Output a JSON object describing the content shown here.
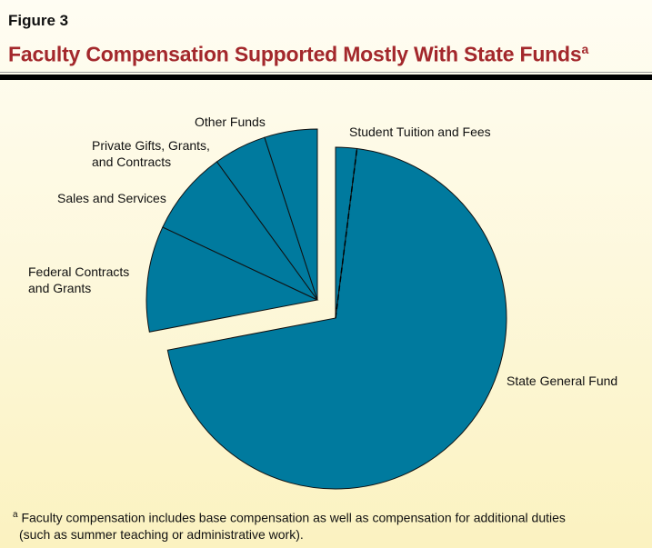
{
  "header": {
    "figure_label": "Figure 3",
    "title": "Faculty Compensation Supported Mostly With State Funds",
    "title_note_marker": "a"
  },
  "chart_data": {
    "type": "pie",
    "title": "Faculty Compensation Supported Mostly With State Funds",
    "units": "percent (estimated)",
    "slices": [
      {
        "label": "Student Tuition and Fees",
        "value": 2,
        "group": "state"
      },
      {
        "label": "State General Fund",
        "value": 70,
        "group": "state"
      },
      {
        "label": "Federal Contracts and Grants",
        "value": 10,
        "group": "other"
      },
      {
        "label": "Sales and Services",
        "value": 8,
        "group": "other"
      },
      {
        "label": "Private Gifts, Grants, and Contracts",
        "value": 5,
        "group": "other"
      },
      {
        "label": "Other Funds",
        "value": 5,
        "group": "other"
      }
    ],
    "exploded_group": "other",
    "colors": {
      "slice": "#007a9e",
      "outline": "#111111"
    }
  },
  "labels": {
    "tuition": "Student Tuition and Fees",
    "sgf": "State General Fund",
    "federal_1": "Federal Contracts",
    "federal_2": "and Grants",
    "sales": "Sales and Services",
    "private_1": "Private Gifts, Grants,",
    "private_2": "and Contracts",
    "other": "Other Funds"
  },
  "footnote": {
    "marker": "a",
    "line1": "Faculty compensation includes base compensation as well as compensation for additional duties",
    "line2": "(such as summer teaching or administrative work)."
  }
}
